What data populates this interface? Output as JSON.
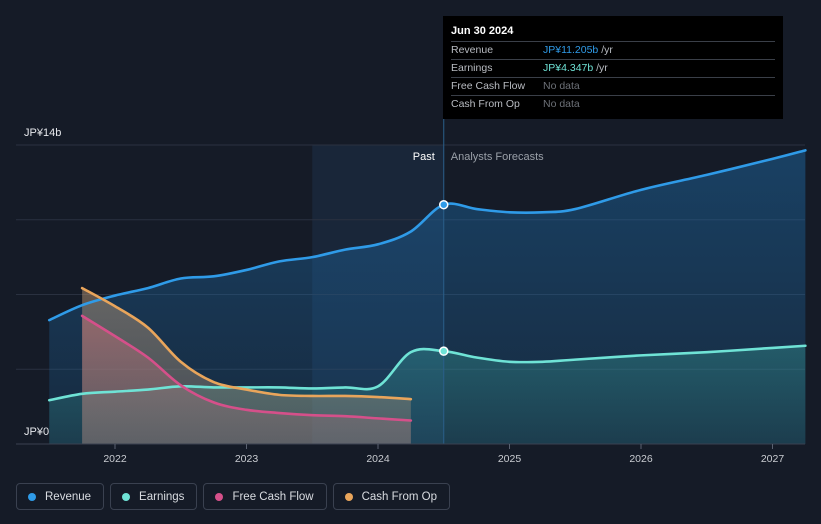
{
  "chart_data": {
    "type": "area",
    "y_unit": "JP¥",
    "ylim": [
      0,
      14
    ],
    "y_ticks": [
      {
        "value": 14,
        "label": "JP¥14b"
      },
      {
        "value": 0,
        "label": "JP¥0"
      }
    ],
    "xlim": [
      2021.5,
      2027.25
    ],
    "x_ticks": [
      {
        "value": 2022,
        "label": "2022"
      },
      {
        "value": 2023,
        "label": "2023"
      },
      {
        "value": 2024,
        "label": "2024"
      },
      {
        "value": 2025,
        "label": "2025"
      },
      {
        "value": 2026,
        "label": "2026"
      },
      {
        "value": 2027,
        "label": "2027"
      }
    ],
    "past_start": 2023.5,
    "divider": 2024.5,
    "past_label": "Past",
    "forecast_label": "Analysts Forecasts",
    "series": [
      {
        "name": "Revenue",
        "key": "revenue",
        "color": "#2f9be8",
        "points": [
          [
            2021.5,
            5.8
          ],
          [
            2021.75,
            6.5
          ],
          [
            2022,
            6.95
          ],
          [
            2022.25,
            7.3
          ],
          [
            2022.5,
            7.75
          ],
          [
            2022.75,
            7.85
          ],
          [
            2023,
            8.15
          ],
          [
            2023.25,
            8.55
          ],
          [
            2023.5,
            8.75
          ],
          [
            2023.75,
            9.1
          ],
          [
            2024,
            9.35
          ],
          [
            2024.25,
            9.95
          ],
          [
            2024.5,
            11.205
          ],
          [
            2024.75,
            11.0
          ],
          [
            2025,
            10.85
          ],
          [
            2025.25,
            10.85
          ],
          [
            2025.5,
            11.0
          ],
          [
            2026,
            11.9
          ],
          [
            2026.5,
            12.6
          ],
          [
            2027,
            13.35
          ],
          [
            2027.25,
            13.75
          ]
        ]
      },
      {
        "name": "Earnings",
        "key": "earnings",
        "color": "#6fe3d6",
        "points": [
          [
            2021.5,
            2.05
          ],
          [
            2021.75,
            2.35
          ],
          [
            2022,
            2.45
          ],
          [
            2022.25,
            2.55
          ],
          [
            2022.5,
            2.7
          ],
          [
            2022.75,
            2.65
          ],
          [
            2023,
            2.65
          ],
          [
            2023.25,
            2.65
          ],
          [
            2023.5,
            2.6
          ],
          [
            2023.75,
            2.65
          ],
          [
            2024,
            2.7
          ],
          [
            2024.25,
            4.3
          ],
          [
            2024.5,
            4.347
          ],
          [
            2024.75,
            4.05
          ],
          [
            2025,
            3.85
          ],
          [
            2025.25,
            3.85
          ],
          [
            2025.5,
            3.95
          ],
          [
            2026,
            4.15
          ],
          [
            2026.5,
            4.3
          ],
          [
            2027,
            4.5
          ],
          [
            2027.25,
            4.6
          ]
        ]
      },
      {
        "name": "Free Cash Flow",
        "key": "fcf",
        "color": "#d5508a",
        "points": [
          [
            2021.75,
            6.0
          ],
          [
            2022,
            5.05
          ],
          [
            2022.25,
            4.05
          ],
          [
            2022.5,
            2.75
          ],
          [
            2022.75,
            1.95
          ],
          [
            2023,
            1.6
          ],
          [
            2023.25,
            1.45
          ],
          [
            2023.5,
            1.35
          ],
          [
            2023.75,
            1.3
          ],
          [
            2024,
            1.2
          ],
          [
            2024.25,
            1.1
          ]
        ]
      },
      {
        "name": "Cash From Op",
        "key": "cfo",
        "color": "#e9a55b",
        "points": [
          [
            2021.75,
            7.3
          ],
          [
            2022,
            6.45
          ],
          [
            2022.25,
            5.45
          ],
          [
            2022.5,
            3.85
          ],
          [
            2022.75,
            2.9
          ],
          [
            2023,
            2.55
          ],
          [
            2023.25,
            2.3
          ],
          [
            2023.5,
            2.25
          ],
          [
            2023.75,
            2.25
          ],
          [
            2024,
            2.2
          ],
          [
            2024.25,
            2.1
          ]
        ]
      }
    ],
    "highlight_x": 2024.5
  },
  "tooltip": {
    "date": "Jun 30 2024",
    "rows": [
      {
        "label": "Revenue",
        "value": "JP¥11.205b",
        "unit": " /yr"
      },
      {
        "label": "Earnings",
        "value": "JP¥4.347b",
        "unit": " /yr"
      },
      {
        "label": "Free Cash Flow",
        "value": "No data",
        "unit": ""
      },
      {
        "label": "Cash From Op",
        "value": "No data",
        "unit": ""
      }
    ]
  },
  "legend": [
    {
      "label": "Revenue",
      "color": "#2f9be8"
    },
    {
      "label": "Earnings",
      "color": "#6fe3d6"
    },
    {
      "label": "Free Cash Flow",
      "color": "#d5508a"
    },
    {
      "label": "Cash From Op",
      "color": "#e9a55b"
    }
  ]
}
